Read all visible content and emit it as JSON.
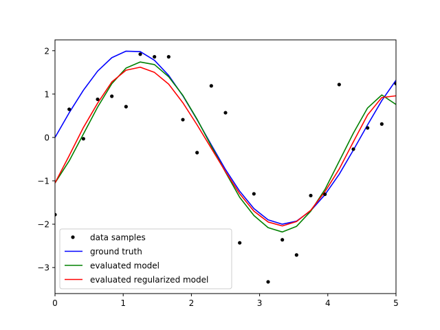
{
  "chart_data": {
    "type": "line",
    "xlim": [
      0,
      5
    ],
    "ylim": [
      -3.6,
      2.25
    ],
    "x_ticks": [
      0,
      1,
      2,
      3,
      4,
      5
    ],
    "y_ticks": [
      -3,
      -2,
      -1,
      0,
      1,
      2
    ],
    "x_tick_labels": [
      "0",
      "1",
      "2",
      "3",
      "4",
      "5"
    ],
    "y_tick_labels": [
      "−3",
      "−2",
      "−1",
      "0",
      "1",
      "2"
    ],
    "grid": false,
    "legend_position": "lower-left",
    "x": [
      0.0,
      0.2083,
      0.4167,
      0.625,
      0.8333,
      1.0417,
      1.25,
      1.4583,
      1.6667,
      1.875,
      2.0833,
      2.2917,
      2.5,
      2.7083,
      2.9167,
      3.125,
      3.3333,
      3.5417,
      3.75,
      3.9583,
      4.1667,
      4.375,
      4.5833,
      4.7917,
      5.0
    ],
    "series": [
      {
        "name": "data samples",
        "kind": "scatter",
        "color": "#000000",
        "values": [
          -1.78,
          0.65,
          -0.03,
          0.88,
          0.95,
          0.71,
          1.92,
          1.86,
          1.86,
          0.41,
          -0.35,
          1.19,
          0.57,
          -2.43,
          -1.3,
          -3.33,
          -2.36,
          -2.71,
          -1.34,
          -1.31,
          1.22,
          -0.27,
          0.22,
          0.31,
          1.24
        ]
      },
      {
        "name": "ground truth",
        "kind": "line",
        "color": "#0000ff",
        "values": [
          0.0,
          0.57,
          1.09,
          1.53,
          1.84,
          1.99,
          1.98,
          1.78,
          1.43,
          0.96,
          0.41,
          -0.17,
          -0.74,
          -1.24,
          -1.64,
          -1.9,
          -2.0,
          -1.93,
          -1.69,
          -1.32,
          -0.85,
          -0.29,
          0.29,
          0.85,
          1.32
        ]
      },
      {
        "name": "evaluated model",
        "kind": "line",
        "color": "#008000",
        "values": [
          -1.05,
          -0.54,
          0.08,
          0.7,
          1.24,
          1.6,
          1.74,
          1.68,
          1.4,
          0.97,
          0.42,
          -0.2,
          -0.8,
          -1.38,
          -1.8,
          -2.08,
          -2.18,
          -2.05,
          -1.7,
          -1.2,
          -0.55,
          0.1,
          0.68,
          0.98,
          0.76
        ]
      },
      {
        "name": "evaluated regularized model",
        "kind": "line",
        "color": "#ff0000",
        "values": [
          -1.05,
          -0.42,
          0.23,
          0.79,
          1.28,
          1.55,
          1.62,
          1.5,
          1.23,
          0.8,
          0.29,
          -0.25,
          -0.79,
          -1.3,
          -1.7,
          -1.95,
          -2.04,
          -1.94,
          -1.68,
          -1.25,
          -0.73,
          -0.1,
          0.52,
          0.92,
          0.96
        ]
      }
    ]
  }
}
